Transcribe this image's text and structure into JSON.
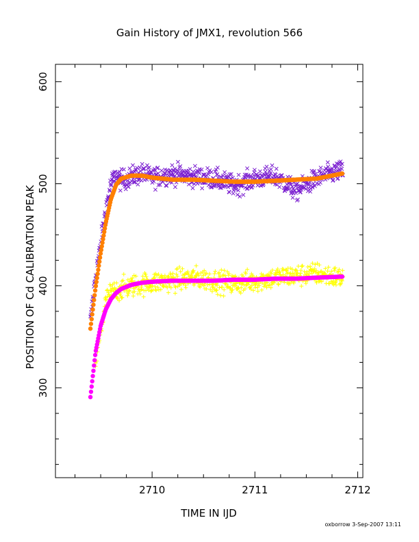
{
  "chart_data": {
    "type": "scatter",
    "title": "Gain History of JMX1, revolution 566",
    "xlabel": "TIME IN IJD",
    "ylabel": "POSITION OF Cd CALIBRATION PEAK",
    "footer": "oxborrow  3-Sep-2007 13:11",
    "xlim": [
      2709.06,
      2712.05
    ],
    "ylim": [
      212,
      617
    ],
    "x_major_ticks": [
      2710,
      2711,
      2712
    ],
    "x_tick_labels": [
      "2710",
      "2711",
      "2712"
    ],
    "x_minor_step": 0.25,
    "y_major_ticks": [
      300,
      400,
      500,
      600
    ],
    "y_tick_labels": [
      "300",
      "400",
      "500",
      "600"
    ],
    "y_minor_step": 25,
    "grid": false,
    "legend": "none",
    "series": [
      {
        "marker": "x",
        "color": "#7b1fd0",
        "kind": "measured",
        "x": [
          2709.4,
          2709.45,
          2709.5,
          2709.55,
          2709.6,
          2709.65,
          2709.7,
          2709.8,
          2709.9,
          2710.0,
          2710.2,
          2710.4,
          2710.6,
          2710.8,
          2711.0,
          2711.2,
          2711.4,
          2711.6,
          2711.8
        ],
        "y": [
          365,
          410,
          440,
          475,
          500,
          508,
          503,
          507,
          510,
          506,
          510,
          507,
          505,
          498,
          505,
          507,
          493,
          505,
          512
        ]
      },
      {
        "marker": "line",
        "color": "#ff8000",
        "kind": "fit",
        "x": [
          2709.4,
          2709.45,
          2709.5,
          2709.55,
          2709.6,
          2709.65,
          2709.7,
          2709.8,
          2709.9,
          2710.0,
          2710.2,
          2710.4,
          2710.6,
          2710.8,
          2711.0,
          2711.2,
          2711.4,
          2711.6,
          2711.85
        ],
        "y": [
          358,
          398,
          432,
          462,
          485,
          499,
          505,
          508,
          508,
          506,
          504,
          504,
          503,
          502,
          502,
          503,
          504,
          505,
          510
        ]
      },
      {
        "marker": "+",
        "color": "#ffff00",
        "kind": "measured",
        "x": [
          2709.45,
          2709.5,
          2709.55,
          2709.6,
          2709.7,
          2709.8,
          2710.0,
          2710.2,
          2710.4,
          2710.6,
          2710.8,
          2711.0,
          2711.2,
          2711.4,
          2711.6,
          2711.8
        ],
        "y": [
          325,
          355,
          385,
          393,
          397,
          400,
          403,
          405,
          408,
          405,
          402,
          405,
          408,
          410,
          412,
          408
        ]
      },
      {
        "marker": "line",
        "color": "#ff00ff",
        "kind": "fit",
        "x": [
          2709.4,
          2709.45,
          2709.5,
          2709.55,
          2709.6,
          2709.65,
          2709.7,
          2709.8,
          2709.9,
          2710.0,
          2710.2,
          2710.4,
          2710.6,
          2710.8,
          2711.0,
          2711.2,
          2711.4,
          2711.6,
          2711.85
        ],
        "y": [
          291,
          335,
          361,
          377,
          387,
          393,
          397,
          401,
          403,
          404,
          405,
          405,
          405,
          406,
          406,
          407,
          407,
          408,
          409
        ]
      }
    ]
  }
}
